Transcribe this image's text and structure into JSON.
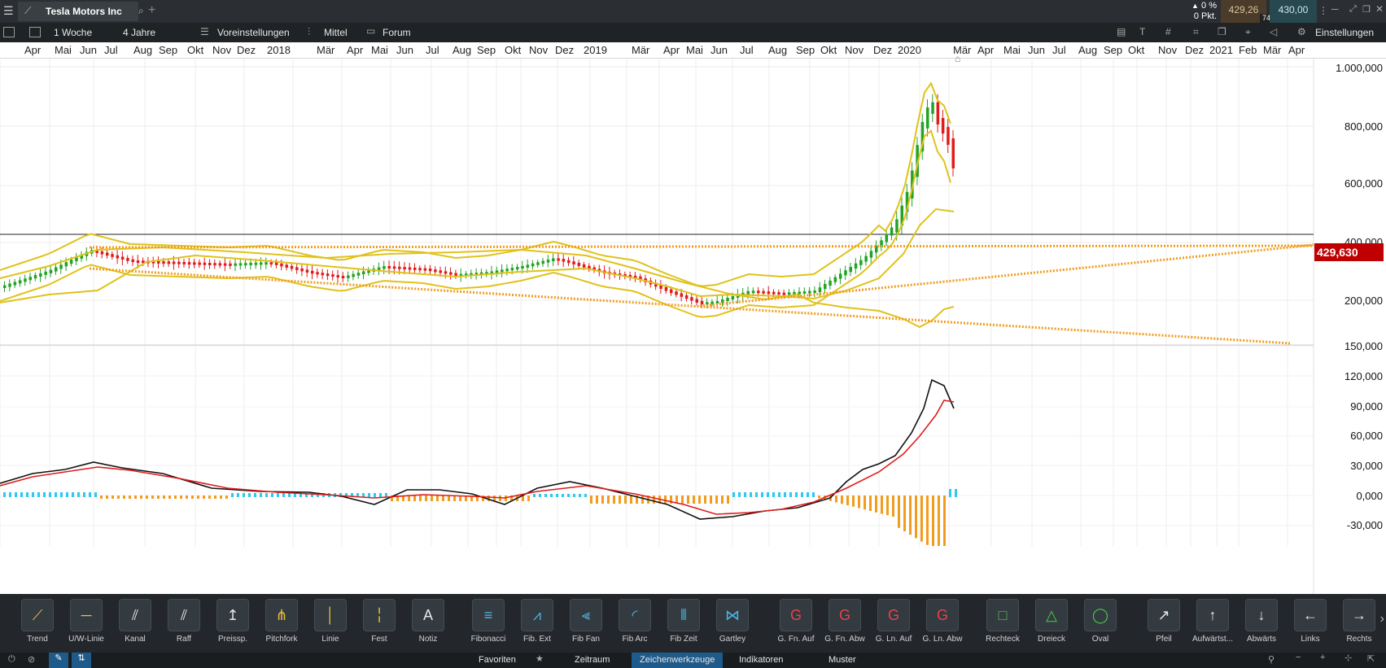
{
  "topbar": {
    "instrument": "Tesla Motors Inc",
    "change_pct": "0 %",
    "change_pts": "0 Pkt.",
    "bid": "429,26",
    "ask": "430,00",
    "spread": "74"
  },
  "toolbar": {
    "interval": "1 Woche",
    "range": "4 Jahre",
    "presets": "Voreinstellungen",
    "mittel": "Mittel",
    "forum": "Forum",
    "settings": "Einstellungen"
  },
  "time_axis": [
    "Apr",
    "Mai",
    "Jun",
    "Jul",
    "Aug",
    "Sep",
    "Okt",
    "Nov",
    "Dez",
    "2018",
    "Mär",
    "Apr",
    "Mai",
    "Jun",
    "Jul",
    "Aug",
    "Sep",
    "Okt",
    "Nov",
    "Dez",
    "2019",
    "Mär",
    "Apr",
    "Mai",
    "Jun",
    "Jul",
    "Aug",
    "Sep",
    "Okt",
    "Nov",
    "Dez",
    "2020",
    "Mär",
    "Apr",
    "Mai",
    "Jun",
    "Jul",
    "Aug",
    "Sep",
    "Okt",
    "Nov",
    "Dez",
    "2021",
    "Feb",
    "Mär",
    "Apr"
  ],
  "price_axis": [
    "1.000,000",
    "800,000",
    "600,000",
    "400,000",
    "200,000",
    "150,000"
  ],
  "current_price": "429,630",
  "osc_axis": [
    "120,000",
    "90,000",
    "60,000",
    "30,000",
    "0,000",
    "-30,000"
  ],
  "drawing_tools": [
    {
      "label": "Trend",
      "icon": "trendline-icon"
    },
    {
      "label": "U/W-Linie",
      "icon": "support-line-icon"
    },
    {
      "label": "Kanal",
      "icon": "channel-icon"
    },
    {
      "label": "Raff",
      "icon": "raff-icon"
    },
    {
      "label": "Preissp.",
      "icon": "price-range-icon"
    },
    {
      "label": "Pitchfork",
      "icon": "pitchfork-icon"
    },
    {
      "label": "Linie",
      "icon": "vertical-line-icon"
    },
    {
      "label": "Fest",
      "icon": "fixed-line-icon"
    },
    {
      "label": "Notiz",
      "icon": "note-icon"
    },
    {
      "label": "Fibonacci",
      "icon": "fibonacci-icon"
    },
    {
      "label": "Fib. Ext",
      "icon": "fib-extension-icon"
    },
    {
      "label": "Fib Fan",
      "icon": "fib-fan-icon"
    },
    {
      "label": "Fib Arc",
      "icon": "fib-arc-icon"
    },
    {
      "label": "Fib Zeit",
      "icon": "fib-time-icon"
    },
    {
      "label": "Gartley",
      "icon": "gartley-icon"
    },
    {
      "label": "G. Fn. Auf",
      "icon": "gann-fan-up-icon"
    },
    {
      "label": "G. Fn. Abw",
      "icon": "gann-fan-down-icon"
    },
    {
      "label": "G. Ln. Auf",
      "icon": "gann-line-up-icon"
    },
    {
      "label": "G. Ln. Abw",
      "icon": "gann-line-down-icon"
    },
    {
      "label": "Rechteck",
      "icon": "rectangle-icon"
    },
    {
      "label": "Dreieck",
      "icon": "triangle-icon"
    },
    {
      "label": "Oval",
      "icon": "oval-icon"
    },
    {
      "label": "Pfeil",
      "icon": "arrow-icon"
    },
    {
      "label": "Aufwärtst...",
      "icon": "arrow-up-icon"
    },
    {
      "label": "Abwärts",
      "icon": "arrow-down-icon"
    },
    {
      "label": "Links",
      "icon": "arrow-left-icon"
    },
    {
      "label": "Rechts",
      "icon": "arrow-right-icon"
    }
  ],
  "bottom_tabs": {
    "favoriten": "Favoriten",
    "zeitraum": "Zeitraum",
    "zeichenwerkzeuge": "Zeichenwerkzeuge",
    "indikatoren": "Indikatoren",
    "muster": "Muster"
  },
  "colors": {
    "up": "#22a325",
    "down": "#e01b1b",
    "bollinger": "#e0c21a",
    "trendline": "#f29c1f",
    "macd_pos": "#2ec8f0",
    "macd_neg": "#f29c1f",
    "price_tag": "#c00000"
  }
}
